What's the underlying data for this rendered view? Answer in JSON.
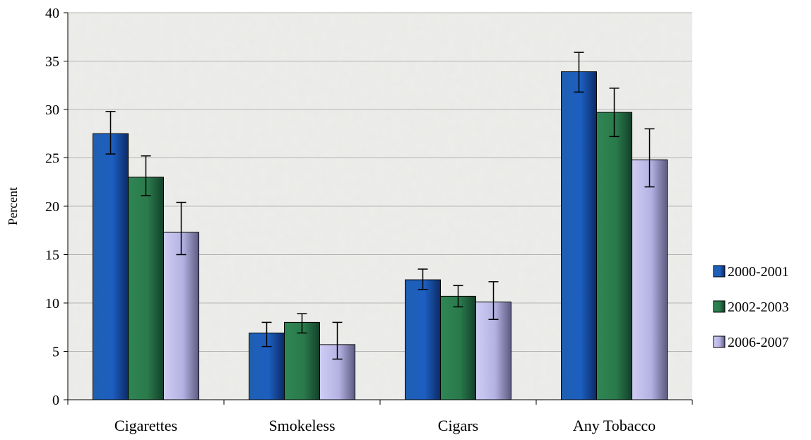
{
  "chart_data": {
    "type": "bar",
    "title": "",
    "xlabel": "",
    "ylabel": "Percent",
    "ylim": [
      0,
      40
    ],
    "yticks": [
      0,
      5,
      10,
      15,
      20,
      25,
      30,
      35,
      40
    ],
    "grid": true,
    "legend_position": "right",
    "categories": [
      "Cigarettes",
      "Smokeless",
      "Cigars",
      "Any Tobacco"
    ],
    "series": [
      {
        "name": "2000-2001",
        "color": "#1f5fb3",
        "values": [
          27.5,
          6.9,
          12.4,
          33.9
        ],
        "error_low": [
          25.4,
          5.5,
          11.4,
          31.8
        ],
        "error_high": [
          29.8,
          8.0,
          13.5,
          35.9
        ]
      },
      {
        "name": "2002-2003",
        "color": "#2e7d4f",
        "values": [
          23.0,
          8.0,
          10.7,
          29.7
        ],
        "error_low": [
          21.1,
          6.9,
          9.6,
          27.2
        ],
        "error_high": [
          25.2,
          8.9,
          11.8,
          32.2
        ]
      },
      {
        "name": "2006-2007",
        "color": "#b7b4e6",
        "values": [
          17.3,
          5.7,
          10.1,
          24.8
        ],
        "error_low": [
          15.0,
          4.2,
          8.3,
          22.0
        ],
        "error_high": [
          20.4,
          8.0,
          12.2,
          28.0
        ]
      }
    ]
  }
}
